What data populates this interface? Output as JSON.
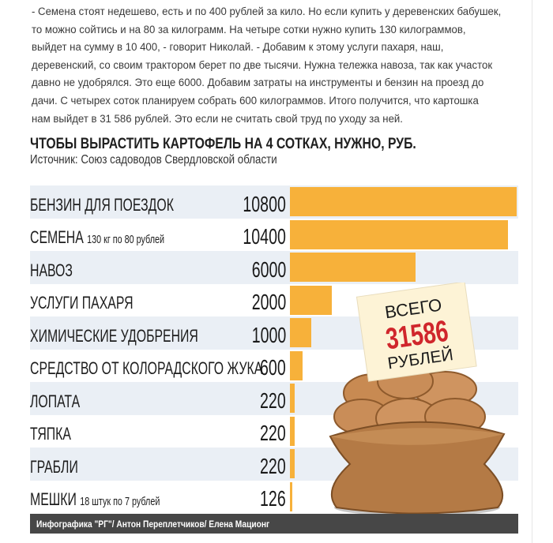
{
  "article": {
    "lines": [
      "- Семена стоят недешево, есть и по 400 рублей за кило. Но если купить у деревенских бабушек,",
      "то можно сойтись и на 80 за килограмм. На четыре сотки нужно купить 130 килограммов,",
      "выйдет на сумму в 10 400, - говорит Николай. - Добавим к этому услуги пахаря, наш,",
      "деревенский, со своим трактором берет по две тысячи. Нужна тележка навоза, так как участок",
      "давно не удобрялся. Это еще 6000. Добавим затраты на инструменты и бензин на проезд до",
      "дачи. С четырех соток планируем собрать 600 килограммов. Итого получится, что картошка",
      "нам выйдет в 31 586 рублей. Это если не считать свой труд по уходу за ней."
    ]
  },
  "chart_data": {
    "type": "bar",
    "orientation": "horizontal",
    "title": "ЧТОБЫ ВЫРАСТИТЬ КАРТОФЕЛЬ НА 4 СОТКАХ, НУЖНО, РУБ.",
    "subtitle": "Источник: Союз садоводов Свердловской области",
    "categories": [
      "БЕНЗИН ДЛЯ ПОЕЗДОК",
      "СЕМЕНА",
      "НАВОЗ",
      "УСЛУГИ ПАХАРЯ",
      "ХИМИЧЕСКИЕ УДОБРЕНИЯ",
      "СРЕДСТВО ОТ КОЛОРАДСКОГО ЖУКА",
      "ЛОПАТА",
      "ТЯПКА",
      "ГРАБЛИ",
      "МЕШКИ"
    ],
    "notes": [
      "",
      "130 кг по 80 рублей",
      "",
      "",
      "",
      "",
      "",
      "",
      "",
      "18 штук по 7 рублей"
    ],
    "values": [
      10800,
      10400,
      6000,
      2000,
      1000,
      600,
      220,
      220,
      220,
      126
    ],
    "bar_color": "#f7b13a",
    "row_band_color": "#eaeff5",
    "grid": false,
    "total": {
      "top": "ВСЕГО",
      "value": "31586",
      "bottom": "РУБЛЕЙ",
      "value_color": "#d0262c"
    },
    "credit": "Инфографика \"РГ\"/ Антон Переплетчиков/ Елена Мационг"
  }
}
